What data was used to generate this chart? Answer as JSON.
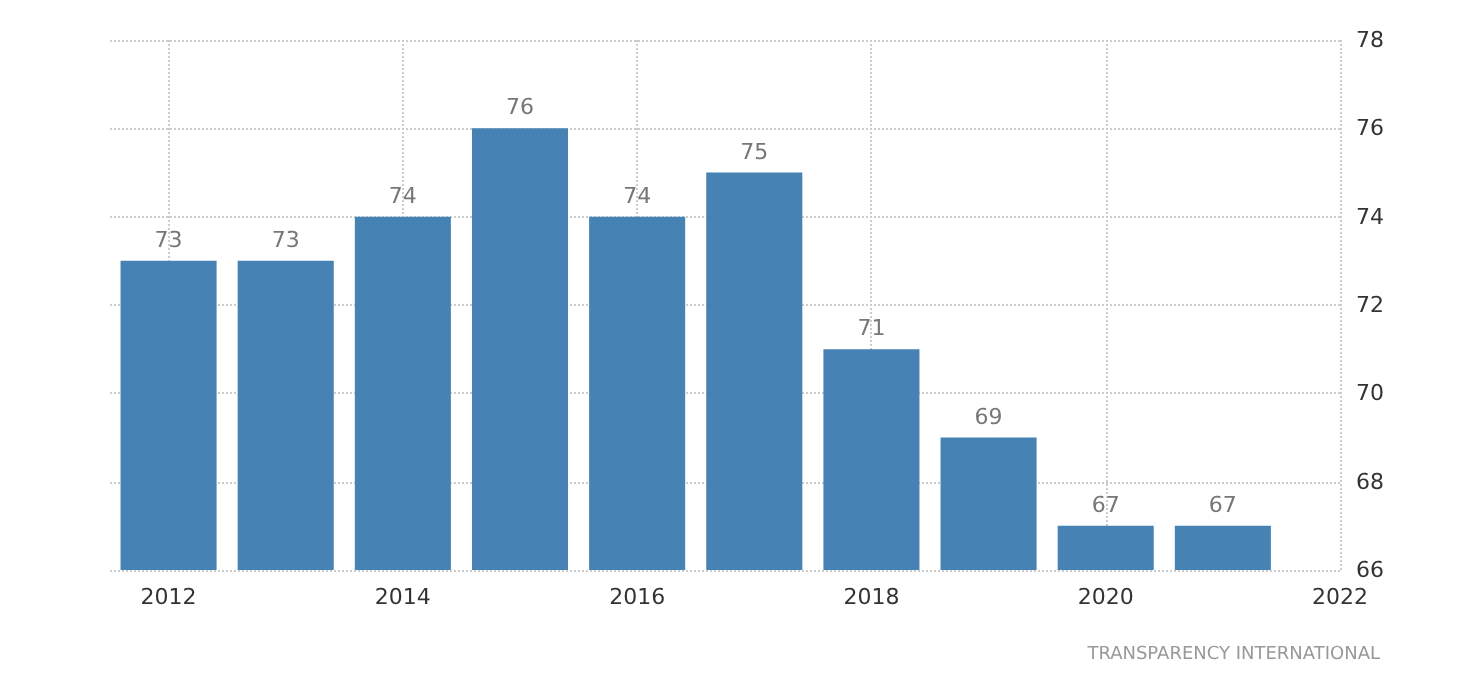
{
  "chart_data": {
    "type": "bar",
    "x": [
      2012,
      2013,
      2014,
      2015,
      2016,
      2017,
      2018,
      2019,
      2020,
      2021
    ],
    "values": [
      73,
      73,
      74,
      76,
      74,
      75,
      71,
      69,
      67,
      67
    ],
    "color": "#4682b4",
    "xlim": [
      2011.5,
      2022
    ],
    "xticks": [
      2012,
      2014,
      2016,
      2018,
      2020,
      2022
    ],
    "ylim": [
      66,
      78
    ],
    "yticks": [
      66,
      68,
      70,
      72,
      74,
      76,
      78
    ],
    "grid": true,
    "data_labels": true,
    "annotations": [
      "TRANSPARENCY INTERNATIONAL"
    ]
  }
}
